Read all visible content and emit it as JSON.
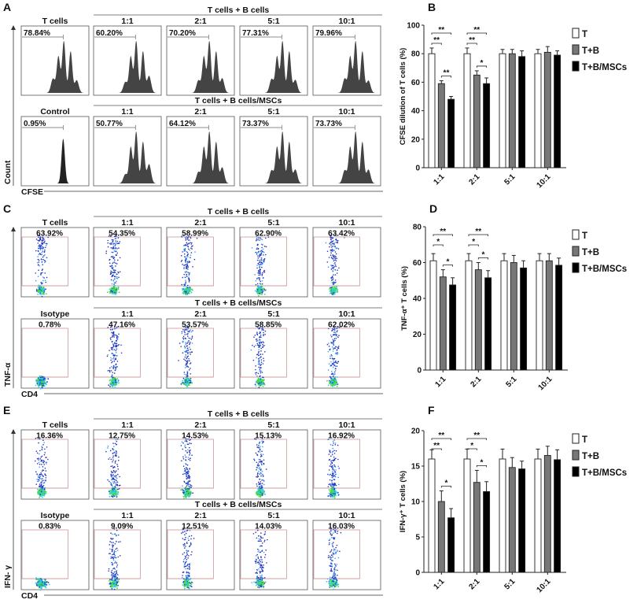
{
  "flow_panels": [
    {
      "letter": "A",
      "kind": "histogram",
      "x_axis": "CFSE",
      "y_axis": "Count",
      "top": {
        "group": "T cells + B cells",
        "first": "T cells",
        "first_pct": "78.84%",
        "ratios": [
          "1:1",
          "2:1",
          "5:1",
          "10:1"
        ],
        "pcts": [
          "60.20%",
          "70.20%",
          "77.31%",
          "79.96%"
        ]
      },
      "bottom": {
        "group": "T cells + B cells/MSCs",
        "first": "Control",
        "first_pct": "0.95%",
        "ratios": [
          "1:1",
          "2:1",
          "5:1",
          "10:1"
        ],
        "pcts": [
          "50.77%",
          "64.12%",
          "73.37%",
          "73.73%"
        ]
      }
    },
    {
      "letter": "C",
      "kind": "dotplot",
      "x_axis": "CD4",
      "y_axis": "TNF-α",
      "top": {
        "group": "T cells + B cells",
        "first": "T cells",
        "first_pct": "63.92%",
        "ratios": [
          "1:1",
          "2:1",
          "5:1",
          "10:1"
        ],
        "pcts": [
          "54.35%",
          "58.99%",
          "62.90%",
          "63.42%"
        ]
      },
      "bottom": {
        "group": "T cells + B cells/MSCs",
        "first": "Isotype",
        "first_pct": "0.78%",
        "ratios": [
          "1:1",
          "2:1",
          "5:1",
          "10:1"
        ],
        "pcts": [
          "47.16%",
          "53.57%",
          "58.85%",
          "62.02%"
        ]
      }
    },
    {
      "letter": "E",
      "kind": "dotplot",
      "x_axis": "CD4",
      "y_axis": "IFN- γ",
      "top": {
        "group": "T cells + B cells",
        "first": "T cells",
        "first_pct": "16.36%",
        "ratios": [
          "1:1",
          "2:1",
          "5:1",
          "10:1"
        ],
        "pcts": [
          "12.75%",
          "14.53%",
          "15.13%",
          "16.92%"
        ]
      },
      "bottom": {
        "group": "T cells + B cells/MSCs",
        "first": "Isotype",
        "first_pct": "0.83%",
        "ratios": [
          "1:1",
          "2:1",
          "5:1",
          "10:1"
        ],
        "pcts": [
          "9.09%",
          "12.51%",
          "14.03%",
          "16.03%"
        ]
      }
    }
  ],
  "chart_data": [
    {
      "letter": "B",
      "type": "bar",
      "ylabel": "CFSE dilution of T cells (%)",
      "ylim": [
        0,
        100
      ],
      "yticks": [
        0,
        20,
        40,
        60,
        80,
        100
      ],
      "categories": [
        "1:1",
        "2:1",
        "5:1",
        "10:1"
      ],
      "legend_position": "right",
      "series": [
        {
          "name": "T",
          "color": "#ffffff",
          "values": [
            80,
            80,
            80,
            80
          ],
          "errors": [
            4,
            4,
            3,
            3
          ]
        },
        {
          "name": "T+B",
          "color": "#777777",
          "values": [
            59,
            65,
            80,
            81
          ],
          "errors": [
            2,
            3,
            3,
            4
          ]
        },
        {
          "name": "T+B/MSCs",
          "color": "#000000",
          "values": [
            48,
            59,
            78,
            79
          ],
          "errors": [
            2,
            4,
            4,
            3
          ]
        }
      ],
      "significance": [
        {
          "category": "1:1",
          "pairs": [
            [
              "T",
              "T+B",
              "**"
            ],
            [
              "T",
              "T+B/MSCs",
              "**"
            ],
            [
              "T+B",
              "T+B/MSCs",
              "**"
            ]
          ]
        },
        {
          "category": "2:1",
          "pairs": [
            [
              "T",
              "T+B",
              "**"
            ],
            [
              "T",
              "T+B/MSCs",
              "**"
            ],
            [
              "T+B",
              "T+B/MSCs",
              "*"
            ]
          ]
        }
      ]
    },
    {
      "letter": "D",
      "type": "bar",
      "ylabel": "TNF-α⁺ T cells (%)",
      "ylim": [
        0,
        80
      ],
      "yticks": [
        0,
        20,
        40,
        60,
        80
      ],
      "categories": [
        "1:1",
        "2:1",
        "5:1",
        "10:1"
      ],
      "legend_position": "right",
      "series": [
        {
          "name": "T",
          "color": "#ffffff",
          "values": [
            61,
            61,
            61,
            61
          ],
          "errors": [
            4,
            4,
            4,
            4
          ]
        },
        {
          "name": "T+B",
          "color": "#777777",
          "values": [
            52,
            56,
            60,
            61
          ],
          "errors": [
            4,
            4,
            4,
            4
          ]
        },
        {
          "name": "T+B/MSCs",
          "color": "#000000",
          "values": [
            47.5,
            51.5,
            57,
            58.5
          ],
          "errors": [
            4,
            4,
            4,
            4
          ]
        }
      ],
      "significance": [
        {
          "category": "1:1",
          "pairs": [
            [
              "T",
              "T+B",
              "*"
            ],
            [
              "T",
              "T+B/MSCs",
              "**"
            ],
            [
              "T+B",
              "T+B/MSCs",
              "*"
            ]
          ]
        },
        {
          "category": "2:1",
          "pairs": [
            [
              "T",
              "T+B",
              "*"
            ],
            [
              "T",
              "T+B/MSCs",
              "**"
            ],
            [
              "T+B",
              "T+B/MSCs",
              "*"
            ]
          ]
        }
      ]
    },
    {
      "letter": "F",
      "type": "bar",
      "ylabel": "IFN-γ⁺ T cells (%)",
      "ylim": [
        0,
        20
      ],
      "yticks": [
        0,
        5,
        10,
        15,
        20
      ],
      "categories": [
        "1:1",
        "2:1",
        "5:1",
        "10:1"
      ],
      "legend_position": "right",
      "series": [
        {
          "name": "T",
          "color": "#ffffff",
          "values": [
            16,
            16,
            16,
            16
          ],
          "errors": [
            1.3,
            1.4,
            1.4,
            1.4
          ]
        },
        {
          "name": "T+B",
          "color": "#777777",
          "values": [
            10,
            12.7,
            14.8,
            16.5
          ],
          "errors": [
            1.5,
            1.7,
            1.4,
            1.3
          ]
        },
        {
          "name": "T+B/MSCs",
          "color": "#000000",
          "values": [
            7.7,
            11.4,
            14.6,
            15.9
          ],
          "errors": [
            1.3,
            1.4,
            1.1,
            1.4
          ]
        }
      ],
      "significance": [
        {
          "category": "1:1",
          "pairs": [
            [
              "T",
              "T+B",
              "**"
            ],
            [
              "T",
              "T+B/MSCs",
              "**"
            ],
            [
              "T+B",
              "T+B/MSCs",
              "*"
            ]
          ]
        },
        {
          "category": "2:1",
          "pairs": [
            [
              "T",
              "T+B",
              "*"
            ],
            [
              "T",
              "T+B/MSCs",
              "**"
            ],
            [
              "T+B",
              "T+B/MSCs",
              "*"
            ]
          ]
        }
      ]
    }
  ]
}
